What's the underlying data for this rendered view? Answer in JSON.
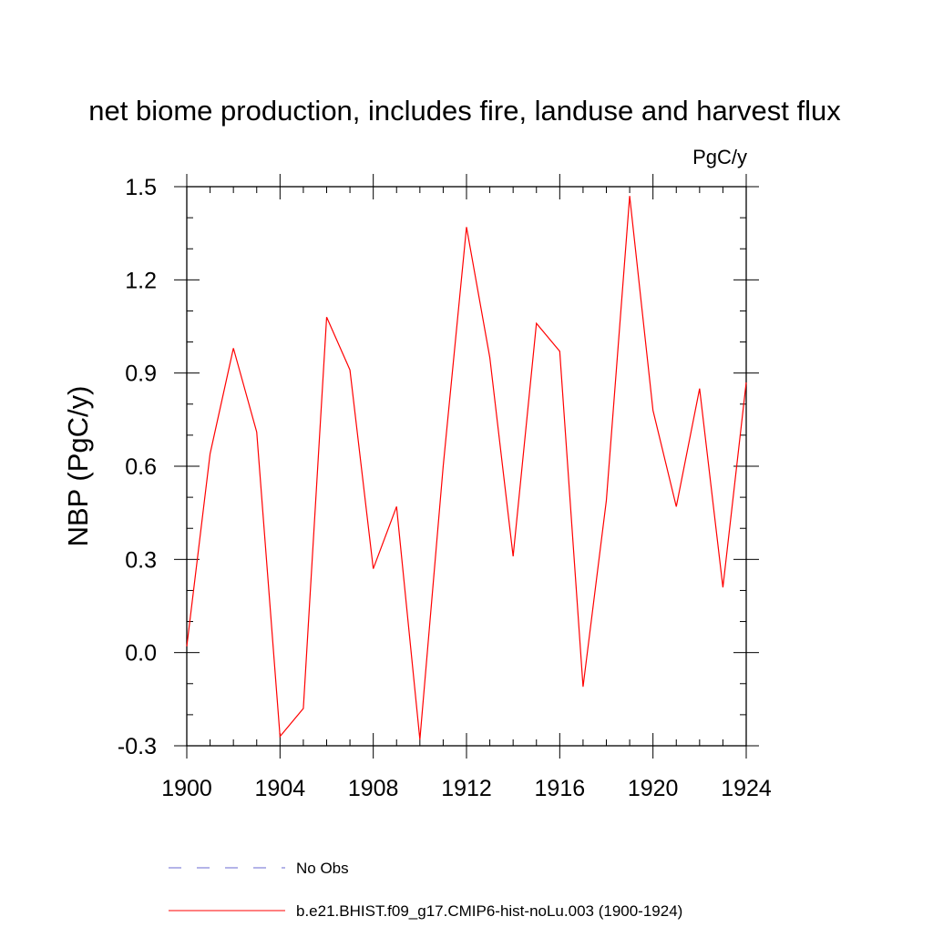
{
  "chart_data": {
    "type": "line",
    "title": "net biome production, includes fire, landuse and harvest flux",
    "units_label": "PgC/y",
    "ylabel": "NBP  (PgC/y)",
    "xlabel": "",
    "xlim": [
      1900,
      1924
    ],
    "ylim": [
      -0.3,
      1.5
    ],
    "x_ticks": [
      1900,
      1904,
      1908,
      1912,
      1916,
      1920,
      1924
    ],
    "x_tick_labels": [
      "1900",
      "1904",
      "1908",
      "1912",
      "1916",
      "1920",
      "1924"
    ],
    "y_ticks": [
      -0.3,
      0.0,
      0.3,
      0.6,
      0.9,
      1.2,
      1.5
    ],
    "y_tick_labels": [
      "-0.3",
      "0.0",
      "0.3",
      "0.6",
      "0.9",
      "1.2",
      "1.5"
    ],
    "grid": false,
    "legend_position": "bottom",
    "series": [
      {
        "name": "b.e21.BHIST.f09_g17.CMIP6-hist-noLu.003 (1900-1924)",
        "color": "#ff0000",
        "style": "solid",
        "x": [
          1900,
          1901,
          1902,
          1903,
          1904,
          1905,
          1906,
          1907,
          1908,
          1909,
          1910,
          1911,
          1912,
          1913,
          1914,
          1915,
          1916,
          1917,
          1918,
          1919,
          1920,
          1921,
          1922,
          1923,
          1924
        ],
        "y": [
          0.02,
          0.64,
          0.98,
          0.71,
          -0.27,
          -0.18,
          1.08,
          0.91,
          0.27,
          0.47,
          -0.28,
          0.6,
          1.37,
          0.95,
          0.31,
          1.06,
          0.97,
          -0.11,
          0.49,
          1.47,
          0.78,
          0.47,
          0.85,
          0.21,
          0.87
        ]
      }
    ],
    "legend": [
      {
        "label": "No Obs",
        "color": "#6a6ad0",
        "style": "dashed"
      },
      {
        "label": "b.e21.BHIST.f09_g17.CMIP6-hist-noLu.003 (1900-1924)",
        "color": "#ff0000",
        "style": "solid"
      }
    ]
  }
}
